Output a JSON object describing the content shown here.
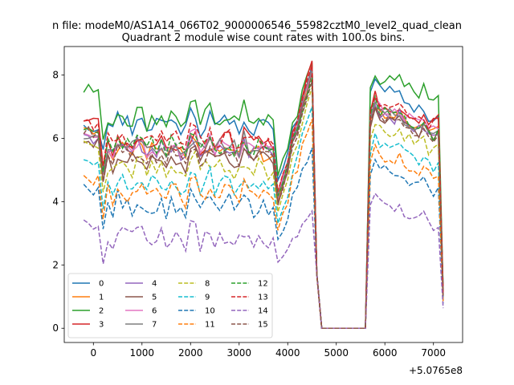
{
  "figure": {
    "suptitle": "n file: modeM0/AS1A14_066T02_9000006546_55982cztM0_level2_quad_clean"
  },
  "chart_data": {
    "type": "line",
    "title": "Quadrant 2 module wise count rates with 100.0s bins.",
    "xlabel": "",
    "ylabel": "",
    "x_offset_label": "+5.0765e8",
    "xlim": [
      -600,
      7600
    ],
    "ylim": [
      -0.45,
      8.9
    ],
    "x_ticks": [
      0,
      1000,
      2000,
      3000,
      4000,
      5000,
      6000,
      7000
    ],
    "y_ticks": [
      0,
      2,
      4,
      6,
      8
    ],
    "grid": false,
    "legend": {
      "placement": "lower-left",
      "columns": 4
    },
    "series": [
      {
        "name": "0",
        "color": "#1f77b4",
        "dash": "solid",
        "baseline": 6.4,
        "level": 6.5,
        "peak": 8.3,
        "right": 6.6
      },
      {
        "name": "1",
        "color": "#ff7f0e",
        "dash": "solid",
        "baseline": 6.3,
        "level": 5.6,
        "peak": 8.2,
        "right": 6.3
      },
      {
        "name": "2",
        "color": "#2ca02c",
        "dash": "solid",
        "baseline": 7.6,
        "level": 6.7,
        "peak": 8.4,
        "right": 7.3
      },
      {
        "name": "3",
        "color": "#d62728",
        "dash": "solid",
        "baseline": 6.6,
        "level": 5.9,
        "peak": 8.45,
        "right": 6.5
      },
      {
        "name": "4",
        "color": "#9467bd",
        "dash": "solid",
        "baseline": 6.0,
        "level": 5.7,
        "peak": 8.2,
        "right": 6.0
      },
      {
        "name": "5",
        "color": "#8c564b",
        "dash": "solid",
        "baseline": 6.0,
        "level": 5.4,
        "peak": 8.1,
        "right": 6.1
      },
      {
        "name": "6",
        "color": "#e377c2",
        "dash": "solid",
        "baseline": 6.2,
        "level": 5.8,
        "peak": 8.2,
        "right": 6.3
      },
      {
        "name": "7",
        "color": "#7f7f7f",
        "dash": "solid",
        "baseline": 6.1,
        "level": 5.8,
        "peak": 8.2,
        "right": 6.0
      },
      {
        "name": "8",
        "color": "#bcbd22",
        "dash": "dashed",
        "baseline": 5.8,
        "level": 5.1,
        "peak": 7.6,
        "right": 5.6
      },
      {
        "name": "9",
        "color": "#17becf",
        "dash": "dashed",
        "baseline": 5.2,
        "level": 4.6,
        "peak": 7.0,
        "right": 5.1
      },
      {
        "name": "10",
        "color": "#1f77b4",
        "dash": "dashed",
        "baseline": 4.5,
        "level": 3.9,
        "peak": 5.7,
        "right": 4.3
      },
      {
        "name": "11",
        "color": "#ff7f0e",
        "dash": "dashed",
        "baseline": 4.8,
        "level": 4.3,
        "peak": 6.6,
        "right": 4.8
      },
      {
        "name": "12",
        "color": "#2ca02c",
        "dash": "dashed",
        "baseline": 6.4,
        "level": 5.8,
        "peak": 7.9,
        "right": 6.0
      },
      {
        "name": "13",
        "color": "#d62728",
        "dash": "dashed",
        "baseline": 6.5,
        "level": 6.0,
        "peak": 8.3,
        "right": 6.4
      },
      {
        "name": "14",
        "color": "#9467bd",
        "dash": "dashed",
        "baseline": 3.4,
        "level": 2.9,
        "peak": 3.7,
        "right": 3.2
      },
      {
        "name": "15",
        "color": "#8c564b",
        "dash": "dashed",
        "baseline": 6.2,
        "level": 5.5,
        "peak": 7.8,
        "right": 6.0
      }
    ]
  }
}
